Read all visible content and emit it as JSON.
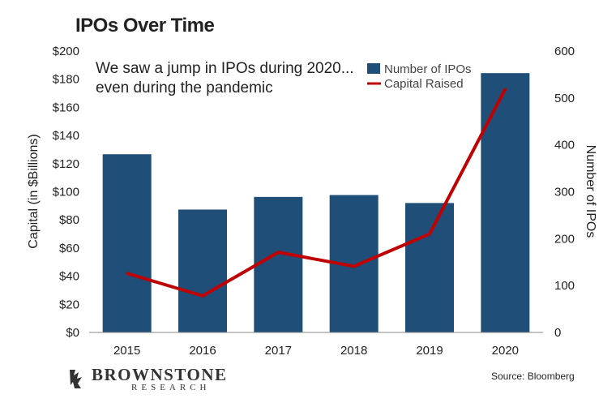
{
  "title": "IPOs Over Time",
  "annotation": [
    "We saw a jump in IPOs during 2020...",
    "even during the pandemic"
  ],
  "legend": {
    "bars": "Number of IPOs",
    "line": "Capital Raised"
  },
  "colors": {
    "bars": "#1F4E79",
    "line": "#C00000"
  },
  "source": "Source: Bloomberg",
  "logo": {
    "name": "BROWNSTONE",
    "sub": "RESEARCH"
  },
  "chart_data": {
    "type": "bar",
    "categories": [
      "2015",
      "2016",
      "2017",
      "2018",
      "2019",
      "2020"
    ],
    "series": [
      {
        "name": "Number of IPOs",
        "type": "bar",
        "axis": "right",
        "values": [
          380,
          262,
          289,
          293,
          276,
          553
        ]
      },
      {
        "name": "Capital Raised",
        "type": "line",
        "axis": "left",
        "values": [
          42,
          26,
          57,
          47,
          70,
          173
        ]
      }
    ],
    "xlabel": "",
    "ylabel_left": "Capital (in $Billions)",
    "ylabel_right": "Number of IPOs",
    "ylim_left": [
      0,
      200
    ],
    "ylim_right": [
      0,
      600
    ],
    "left_ticks": [
      "$0",
      "$20",
      "$40",
      "$60",
      "$80",
      "$100",
      "$120",
      "$140",
      "$160",
      "$180",
      "$200"
    ],
    "right_ticks": [
      "0",
      "100",
      "200",
      "300",
      "400",
      "500",
      "600"
    ],
    "grid": false,
    "legend_position": "top-right"
  }
}
